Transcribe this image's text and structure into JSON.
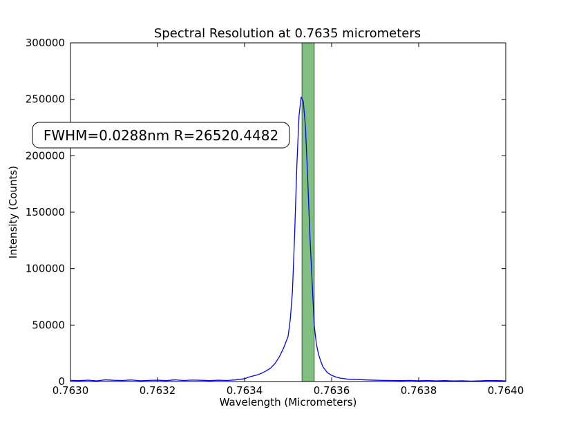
{
  "chart_data": {
    "type": "line",
    "title": "Spectral Resolution at 0.7635 micrometers",
    "xlabel": "Wavelength (Micrometers)",
    "ylabel": "Intensity (Counts)",
    "xlim": [
      0.763,
      0.764
    ],
    "ylim": [
      0,
      300000
    ],
    "x_ticks": [
      "0.7630",
      "0.7632",
      "0.7634",
      "0.7636",
      "0.7638",
      "0.7640"
    ],
    "y_ticks": [
      "0",
      "50000",
      "100000",
      "150000",
      "200000",
      "250000",
      "300000"
    ],
    "grid": false,
    "annotation": "FWHM=0.0288nm R=26520.4482",
    "highlight_band": {
      "x_start": 0.763532,
      "x_end": 0.76356,
      "color": "#7fbf7f"
    },
    "series": [
      {
        "color": "#0000ff",
        "x": [
          0.763,
          0.76302,
          0.76304,
          0.76306,
          0.76308,
          0.7631,
          0.76312,
          0.76314,
          0.76316,
          0.76318,
          0.7632,
          0.76322,
          0.76324,
          0.76326,
          0.76328,
          0.7633,
          0.76332,
          0.76334,
          0.76336,
          0.76338,
          0.7634,
          0.76341,
          0.76342,
          0.76343,
          0.76344,
          0.76345,
          0.76346,
          0.76347,
          0.76348,
          0.76349,
          0.7635,
          0.763505,
          0.76351,
          0.763515,
          0.76352,
          0.763525,
          0.76353,
          0.763535,
          0.76354,
          0.763545,
          0.76355,
          0.763555,
          0.76356,
          0.763565,
          0.76357,
          0.763575,
          0.76358,
          0.76359,
          0.7636,
          0.76361,
          0.76362,
          0.76363,
          0.76364,
          0.76366,
          0.76368,
          0.7637,
          0.76372,
          0.76374,
          0.76376,
          0.76378,
          0.7638,
          0.76382,
          0.76384,
          0.76386,
          0.76388,
          0.7639,
          0.76392,
          0.76394,
          0.76396,
          0.76398,
          0.764
        ],
        "values": [
          1000,
          800,
          1200,
          600,
          1500,
          1100,
          900,
          1400,
          700,
          1000,
          1200,
          800,
          1500,
          900,
          1300,
          1100,
          800,
          1200,
          900,
          1500,
          2500,
          4000,
          5000,
          6000,
          7500,
          9500,
          12000,
          16000,
          22000,
          30000,
          40000,
          55000,
          80000,
          130000,
          190000,
          235000,
          252000,
          248000,
          225000,
          180000,
          130000,
          90000,
          50000,
          33000,
          24000,
          18000,
          13000,
          8000,
          5500,
          4000,
          3000,
          2500,
          2000,
          1800,
          1400,
          1200,
          1000,
          900,
          800,
          1000,
          700,
          900,
          600,
          800,
          500,
          700,
          400,
          600,
          900,
          800,
          600
        ]
      }
    ]
  }
}
